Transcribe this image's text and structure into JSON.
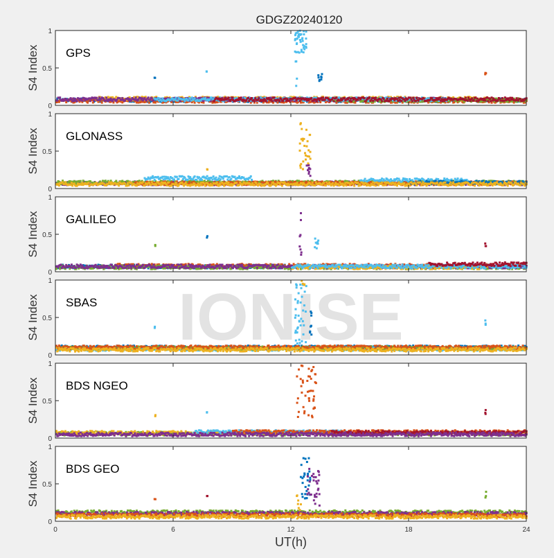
{
  "chart_data": {
    "type": "scatter",
    "title": "GDGZ20240120",
    "xlabel": "UT(h)",
    "ylabel": "S4 Index",
    "xlim": [
      0,
      24
    ],
    "ylim": [
      0,
      1
    ],
    "xticks": [
      0,
      6,
      12,
      18,
      24
    ],
    "yticks": [
      0,
      0.5,
      1
    ],
    "ytick_labels": [
      "0",
      "0.5",
      "1"
    ],
    "watermark": "IONISE",
    "colors": [
      "#0072BD",
      "#D95319",
      "#EDB120",
      "#7E2F8E",
      "#77AC30",
      "#4DBEEE",
      "#A2142F"
    ],
    "panels": [
      {
        "label": "GPS",
        "baselines": [
          {
            "color": "#0072BD",
            "x": [
              0,
              24
            ],
            "level": 0.07
          },
          {
            "color": "#D95319",
            "x": [
              0,
              24
            ],
            "level": 0.06
          },
          {
            "color": "#EDB120",
            "x": [
              2,
              22
            ],
            "level": 0.09
          },
          {
            "color": "#7E2F8E",
            "x": [
              0,
              20
            ],
            "level": 0.08
          },
          {
            "color": "#77AC30",
            "x": [
              14,
              24
            ],
            "level": 0.07
          },
          {
            "color": "#4DBEEE",
            "x": [
              5,
              20
            ],
            "level": 0.08
          },
          {
            "color": "#A2142F",
            "x": [
              8,
              24
            ],
            "level": 0.08
          }
        ],
        "spikes": [
          {
            "color": "#4DBEEE",
            "x": [
              12.2,
              12.8
            ],
            "y": [
              0.7,
              1.0
            ],
            "n": 40
          },
          {
            "color": "#4DBEEE",
            "x": [
              12.2,
              12.35
            ],
            "y": [
              0.25,
              0.6
            ],
            "n": 4
          },
          {
            "color": "#0072BD",
            "x": [
              13.4,
              13.6
            ],
            "y": [
              0.3,
              0.42
            ],
            "n": 8
          },
          {
            "color": "#0072BD",
            "x": [
              5.05,
              5.1
            ],
            "y": [
              0.36,
              0.38
            ],
            "n": 2
          },
          {
            "color": "#4DBEEE",
            "x": [
              7.7,
              7.75
            ],
            "y": [
              0.45,
              0.48
            ],
            "n": 2
          },
          {
            "color": "#D95319",
            "x": [
              21.9,
              21.95
            ],
            "y": [
              0.4,
              0.48
            ],
            "n": 3
          }
        ]
      },
      {
        "label": "GLONASS",
        "baselines": [
          {
            "color": "#7E2F8E",
            "x": [
              0,
              24
            ],
            "level": 0.07
          },
          {
            "color": "#77AC30",
            "x": [
              0,
              24
            ],
            "level": 0.08
          },
          {
            "color": "#D95319",
            "x": [
              4,
              24
            ],
            "level": 0.07
          },
          {
            "color": "#4DBEEE",
            "x": [
              4.5,
              10
            ],
            "level": 0.14
          },
          {
            "color": "#4DBEEE",
            "x": [
              15.5,
              21
            ],
            "level": 0.11
          },
          {
            "color": "#0072BD",
            "x": [
              18,
              24
            ],
            "level": 0.08
          },
          {
            "color": "#EDB120",
            "x": [
              0,
              24
            ],
            "level": 0.06
          }
        ],
        "spikes": [
          {
            "color": "#EDB120",
            "x": [
              12.4,
              13.0
            ],
            "y": [
              0.15,
              0.88
            ],
            "n": 30
          },
          {
            "color": "#7E2F8E",
            "x": [
              12.8,
              13.0
            ],
            "y": [
              0.15,
              0.32
            ],
            "n": 10
          },
          {
            "color": "#EDB120",
            "x": [
              7.7,
              7.75
            ],
            "y": [
              0.25,
              0.27
            ],
            "n": 2
          }
        ]
      },
      {
        "label": "GALILEO",
        "baselines": [
          {
            "color": "#0072BD",
            "x": [
              0,
              12
            ],
            "level": 0.07
          },
          {
            "color": "#D95319",
            "x": [
              3,
              24
            ],
            "level": 0.08
          },
          {
            "color": "#77AC30",
            "x": [
              0,
              24
            ],
            "level": 0.06
          },
          {
            "color": "#7E2F8E",
            "x": [
              0,
              24
            ],
            "level": 0.07
          },
          {
            "color": "#EDB120",
            "x": [
              12,
              22
            ],
            "level": 0.06
          },
          {
            "color": "#4DBEEE",
            "x": [
              12,
              24
            ],
            "level": 0.07
          },
          {
            "color": "#A2142F",
            "x": [
              19,
              24
            ],
            "level": 0.1
          }
        ],
        "spikes": [
          {
            "color": "#7E2F8E",
            "x": [
              12.45,
              12.55
            ],
            "y": [
              0.2,
              0.82
            ],
            "n": 8
          },
          {
            "color": "#4DBEEE",
            "x": [
              13.2,
              13.4
            ],
            "y": [
              0.3,
              0.46
            ],
            "n": 8
          },
          {
            "color": "#77AC30",
            "x": [
              5.05,
              5.1
            ],
            "y": [
              0.34,
              0.36
            ],
            "n": 2
          },
          {
            "color": "#0072BD",
            "x": [
              7.7,
              7.75
            ],
            "y": [
              0.45,
              0.48
            ],
            "n": 2
          },
          {
            "color": "#A2142F",
            "x": [
              21.9,
              21.95
            ],
            "y": [
              0.3,
              0.42
            ],
            "n": 3
          }
        ]
      },
      {
        "label": "SBAS",
        "baselines": [
          {
            "color": "#0072BD",
            "x": [
              0,
              24
            ],
            "level": 0.1
          },
          {
            "color": "#4DBEEE",
            "x": [
              0,
              24
            ],
            "level": 0.08
          },
          {
            "color": "#77AC30",
            "x": [
              0,
              24
            ],
            "level": 0.09
          },
          {
            "color": "#D95319",
            "x": [
              0,
              24
            ],
            "level": 0.1
          },
          {
            "color": "#EDB120",
            "x": [
              0,
              24
            ],
            "level": 0.07
          }
        ],
        "spikes": [
          {
            "color": "#4DBEEE",
            "x": [
              12.2,
              12.8
            ],
            "y": [
              0.15,
              1.0
            ],
            "n": 40
          },
          {
            "color": "#0072BD",
            "x": [
              12.95,
              13.05
            ],
            "y": [
              0.25,
              0.62
            ],
            "n": 8
          },
          {
            "color": "#EDB120",
            "x": [
              12.5,
              12.7
            ],
            "y": [
              0.9,
              1.0
            ],
            "n": 4
          },
          {
            "color": "#4DBEEE",
            "x": [
              5.05,
              5.1
            ],
            "y": [
              0.35,
              0.38
            ],
            "n": 2
          },
          {
            "color": "#4DBEEE",
            "x": [
              21.9,
              21.95
            ],
            "y": [
              0.4,
              0.47
            ],
            "n": 3
          }
        ]
      },
      {
        "label": "BDS NGEO",
        "baselines": [
          {
            "color": "#77AC30",
            "x": [
              0,
              24
            ],
            "level": 0.06
          },
          {
            "color": "#EDB120",
            "x": [
              0,
              12
            ],
            "level": 0.07
          },
          {
            "color": "#4DBEEE",
            "x": [
              7,
              15
            ],
            "level": 0.08
          },
          {
            "color": "#D95319",
            "x": [
              9,
              24
            ],
            "level": 0.08
          },
          {
            "color": "#A2142F",
            "x": [
              14,
              24
            ],
            "level": 0.07
          },
          {
            "color": "#7E2F8E",
            "x": [
              0,
              24
            ],
            "level": 0.05
          }
        ],
        "spikes": [
          {
            "color": "#D95319",
            "x": [
              12.3,
              13.3
            ],
            "y": [
              0.25,
              1.0
            ],
            "n": 45
          },
          {
            "color": "#EDB120",
            "x": [
              5.05,
              5.1
            ],
            "y": [
              0.28,
              0.31
            ],
            "n": 2
          },
          {
            "color": "#4DBEEE",
            "x": [
              7.7,
              7.75
            ],
            "y": [
              0.32,
              0.35
            ],
            "n": 2
          },
          {
            "color": "#A2142F",
            "x": [
              21.9,
              21.95
            ],
            "y": [
              0.3,
              0.38
            ],
            "n": 3
          }
        ]
      },
      {
        "label": "BDS GEO",
        "baselines": [
          {
            "color": "#77AC30",
            "x": [
              0,
              24
            ],
            "level": 0.12
          },
          {
            "color": "#7E2F8E",
            "x": [
              0,
              24
            ],
            "level": 0.1
          },
          {
            "color": "#D95319",
            "x": [
              0,
              24
            ],
            "level": 0.08
          },
          {
            "color": "#EDB120",
            "x": [
              0,
              24
            ],
            "level": 0.06
          }
        ],
        "spikes": [
          {
            "color": "#0072BD",
            "x": [
              12.5,
              13.0
            ],
            "y": [
              0.3,
              0.92
            ],
            "n": 30
          },
          {
            "color": "#7E2F8E",
            "x": [
              12.8,
              13.5
            ],
            "y": [
              0.2,
              0.7
            ],
            "n": 30
          },
          {
            "color": "#EDB120",
            "x": [
              12.3,
              12.6
            ],
            "y": [
              0.1,
              0.35
            ],
            "n": 8
          },
          {
            "color": "#D95319",
            "x": [
              5.05,
              5.1
            ],
            "y": [
              0.29,
              0.31
            ],
            "n": 2
          },
          {
            "color": "#A2142F",
            "x": [
              7.7,
              7.75
            ],
            "y": [
              0.33,
              0.36
            ],
            "n": 2
          },
          {
            "color": "#77AC30",
            "x": [
              21.9,
              21.95
            ],
            "y": [
              0.3,
              0.4
            ],
            "n": 3
          }
        ]
      }
    ]
  }
}
